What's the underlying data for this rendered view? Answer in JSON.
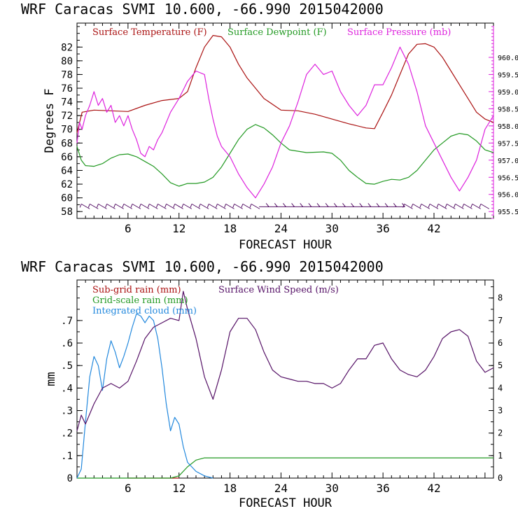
{
  "chart_data": [
    {
      "type": "line",
      "header": "WRF   Caracas SVMI  10.600, -66.990  2015042000",
      "xlabel": "FORECAST HOUR",
      "ylabel": "Degrees F",
      "xlim": [
        0,
        49
      ],
      "xticks": [
        6,
        12,
        18,
        24,
        30,
        36,
        42
      ],
      "ylim": [
        57,
        85.5
      ],
      "yticks": [
        58,
        60,
        62,
        64,
        66,
        68,
        70,
        72,
        74,
        76,
        78,
        80,
        82
      ],
      "y2lim": [
        955.3,
        961.0
      ],
      "y2ticks": [
        "955.5",
        "956.0",
        "956.5",
        "957.0",
        "957.5",
        "958.0",
        "958.5",
        "959.0",
        "959.5",
        "960.0"
      ],
      "series": [
        {
          "name": "Surface Temperature (F)",
          "color": "#aa1111",
          "axis": "left",
          "points": [
            [
              0,
              69.5
            ],
            [
              0.6,
              72.5
            ],
            [
              2,
              72.8
            ],
            [
              4,
              72.7
            ],
            [
              6,
              72.6
            ],
            [
              8,
              73.5
            ],
            [
              10,
              74.2
            ],
            [
              12,
              74.5
            ],
            [
              13,
              75.5
            ],
            [
              14,
              79
            ],
            [
              15,
              82
            ],
            [
              16,
              83.7
            ],
            [
              17,
              83.5
            ],
            [
              18,
              82
            ],
            [
              19,
              79.5
            ],
            [
              20,
              77.5
            ],
            [
              22,
              74.5
            ],
            [
              24,
              72.8
            ],
            [
              26,
              72.7
            ],
            [
              28,
              72.2
            ],
            [
              30,
              71.5
            ],
            [
              32,
              70.8
            ],
            [
              34,
              70.2
            ],
            [
              35,
              70.1
            ],
            [
              36,
              72.5
            ],
            [
              37,
              75
            ],
            [
              38,
              78
            ],
            [
              39,
              81
            ],
            [
              40,
              82.4
            ],
            [
              41,
              82.5
            ],
            [
              42,
              82
            ],
            [
              43,
              80.5
            ],
            [
              44,
              78.5
            ],
            [
              45,
              76.5
            ],
            [
              46,
              74.5
            ],
            [
              47,
              72.5
            ],
            [
              48,
              71.5
            ],
            [
              49,
              71
            ]
          ]
        },
        {
          "name": "Surface Dewpoint (F)",
          "color": "#229922",
          "axis": "left",
          "points": [
            [
              0,
              67.5
            ],
            [
              0.5,
              65.5
            ],
            [
              1,
              64.7
            ],
            [
              2,
              64.6
            ],
            [
              3,
              65
            ],
            [
              4,
              65.8
            ],
            [
              5,
              66.3
            ],
            [
              6,
              66.4
            ],
            [
              7,
              66
            ],
            [
              8,
              65.3
            ],
            [
              9,
              64.6
            ],
            [
              10,
              63.5
            ],
            [
              11,
              62.2
            ],
            [
              12,
              61.7
            ],
            [
              13,
              62.1
            ],
            [
              14,
              62.1
            ],
            [
              15,
              62.3
            ],
            [
              16,
              63
            ],
            [
              17,
              64.5
            ],
            [
              18,
              66.5
            ],
            [
              19,
              68.5
            ],
            [
              20,
              70
            ],
            [
              21,
              70.7
            ],
            [
              22,
              70.2
            ],
            [
              23,
              69.2
            ],
            [
              24,
              68
            ],
            [
              25,
              67
            ],
            [
              27,
              66.6
            ],
            [
              29,
              66.7
            ],
            [
              30,
              66.5
            ],
            [
              31,
              65.5
            ],
            [
              32,
              64
            ],
            [
              33,
              63
            ],
            [
              34,
              62.1
            ],
            [
              35,
              62
            ],
            [
              36,
              62.4
            ],
            [
              37,
              62.7
            ],
            [
              38,
              62.6
            ],
            [
              39,
              63
            ],
            [
              40,
              64
            ],
            [
              41,
              65.5
            ],
            [
              42,
              67
            ],
            [
              43,
              68
            ],
            [
              44,
              69
            ],
            [
              45,
              69.4
            ],
            [
              46,
              69.2
            ],
            [
              47,
              68.3
            ],
            [
              48,
              67
            ],
            [
              49,
              66.6
            ]
          ]
        },
        {
          "name": "Surface Pressure (mb)",
          "color": "#dd22dd",
          "axis": "right",
          "points": [
            [
              0,
              957.5
            ],
            [
              0.3,
              958.1
            ],
            [
              0.6,
              957.9
            ],
            [
              1,
              958.3
            ],
            [
              1.5,
              958.6
            ],
            [
              2,
              959.0
            ],
            [
              2.5,
              958.6
            ],
            [
              3,
              958.8
            ],
            [
              3.5,
              958.4
            ],
            [
              4,
              958.6
            ],
            [
              4.5,
              958.1
            ],
            [
              5,
              958.3
            ],
            [
              5.5,
              958.0
            ],
            [
              6,
              958.3
            ],
            [
              6.5,
              957.9
            ],
            [
              7,
              957.6
            ],
            [
              7.5,
              957.2
            ],
            [
              8,
              957.1
            ],
            [
              8.5,
              957.4
            ],
            [
              9,
              957.3
            ],
            [
              9.5,
              957.6
            ],
            [
              10,
              957.8
            ],
            [
              11,
              958.4
            ],
            [
              12,
              958.8
            ],
            [
              13,
              959.3
            ],
            [
              14,
              959.6
            ],
            [
              15,
              959.5
            ],
            [
              15.5,
              958.8
            ],
            [
              16,
              958.2
            ],
            [
              16.5,
              957.7
            ],
            [
              17,
              957.4
            ],
            [
              18,
              957.1
            ],
            [
              19,
              956.6
            ],
            [
              20,
              956.2
            ],
            [
              21,
              955.9
            ],
            [
              22,
              956.3
            ],
            [
              23,
              956.8
            ],
            [
              24,
              957.5
            ],
            [
              25,
              958.0
            ],
            [
              26,
              958.7
            ],
            [
              27,
              959.5
            ],
            [
              28,
              959.8
            ],
            [
              29,
              959.5
            ],
            [
              30,
              959.6
            ],
            [
              31,
              959.0
            ],
            [
              32,
              958.6
            ],
            [
              33,
              958.3
            ],
            [
              34,
              958.6
            ],
            [
              35,
              959.2
            ],
            [
              36,
              959.2
            ],
            [
              37,
              959.7
            ],
            [
              38,
              960.3
            ],
            [
              39,
              959.8
            ],
            [
              40,
              959.0
            ],
            [
              41,
              958.0
            ],
            [
              42,
              957.5
            ],
            [
              43,
              957.0
            ],
            [
              44,
              956.5
            ],
            [
              45,
              956.1
            ],
            [
              46,
              956.5
            ],
            [
              47,
              957.0
            ],
            [
              48,
              957.9
            ],
            [
              49,
              958.3
            ]
          ]
        }
      ],
      "wind_barbs": "hourly wind barbs along the bottom of the plot"
    },
    {
      "type": "line",
      "header": "WRF   Caracas SVMI  10.600, -66.990  2015042000",
      "xlabel": "FORECAST HOUR",
      "ylabel": "mm",
      "xlim": [
        0,
        49
      ],
      "xticks": [
        6,
        12,
        18,
        24,
        30,
        36,
        42
      ],
      "ylim": [
        0,
        0.88
      ],
      "yticks": [
        "0",
        ".1",
        ".2",
        ".3",
        ".4",
        ".5",
        ".6",
        ".7"
      ],
      "y2lim": [
        0,
        8.8
      ],
      "y2ticks": [
        "0",
        "1",
        "2",
        "3",
        "4",
        "5",
        "6",
        "7",
        "8"
      ],
      "series": [
        {
          "name": "Sub-grid rain (mm)",
          "color": "#aa1111",
          "axis": "left",
          "points": [
            [
              6,
              0.0
            ],
            [
              12,
              0.0
            ]
          ]
        },
        {
          "name": "Grid-scale rain (mm)",
          "color": "#229922",
          "axis": "left",
          "points": [
            [
              0,
              0
            ],
            [
              11,
              0
            ],
            [
              12,
              0.01
            ],
            [
              13,
              0.05
            ],
            [
              14,
              0.08
            ],
            [
              15,
              0.09
            ],
            [
              49,
              0.09
            ]
          ]
        },
        {
          "name": "Integrated cloud (mm)",
          "color": "#2288dd",
          "axis": "left",
          "points": [
            [
              0,
              0
            ],
            [
              0.5,
              0.04
            ],
            [
              1,
              0.25
            ],
            [
              1.5,
              0.45
            ],
            [
              2,
              0.54
            ],
            [
              2.5,
              0.5
            ],
            [
              3,
              0.39
            ],
            [
              3.5,
              0.53
            ],
            [
              4,
              0.61
            ],
            [
              4.5,
              0.56
            ],
            [
              5,
              0.49
            ],
            [
              5.5,
              0.54
            ],
            [
              6,
              0.6
            ],
            [
              6.5,
              0.67
            ],
            [
              7,
              0.73
            ],
            [
              7.5,
              0.72
            ],
            [
              8,
              0.69
            ],
            [
              8.5,
              0.72
            ],
            [
              9,
              0.7
            ],
            [
              9.5,
              0.62
            ],
            [
              10,
              0.49
            ],
            [
              10.5,
              0.33
            ],
            [
              11,
              0.21
            ],
            [
              11.5,
              0.27
            ],
            [
              12,
              0.24
            ],
            [
              12.5,
              0.14
            ],
            [
              13,
              0.07
            ],
            [
              14,
              0.03
            ],
            [
              15,
              0.01
            ],
            [
              16,
              0.0
            ]
          ]
        },
        {
          "name": "Surface Wind Speed (m/s)",
          "color": "#551166",
          "axis": "right",
          "points": [
            [
              0,
              2.1
            ],
            [
              0.5,
              2.8
            ],
            [
              1,
              2.4
            ],
            [
              2,
              3.3
            ],
            [
              3,
              4.0
            ],
            [
              4,
              4.2
            ],
            [
              5,
              4.0
            ],
            [
              6,
              4.3
            ],
            [
              7,
              5.2
            ],
            [
              8,
              6.2
            ],
            [
              9,
              6.7
            ],
            [
              10,
              6.9
            ],
            [
              11,
              7.1
            ],
            [
              12,
              7.0
            ],
            [
              12.5,
              8.3
            ],
            [
              13,
              7.5
            ],
            [
              14,
              6.2
            ],
            [
              15,
              4.5
            ],
            [
              16,
              3.5
            ],
            [
              17,
              4.8
            ],
            [
              18,
              6.5
            ],
            [
              19,
              7.1
            ],
            [
              20,
              7.1
            ],
            [
              21,
              6.6
            ],
            [
              22,
              5.6
            ],
            [
              23,
              4.8
            ],
            [
              24,
              4.5
            ],
            [
              25,
              4.4
            ],
            [
              26,
              4.3
            ],
            [
              27,
              4.3
            ],
            [
              28,
              4.2
            ],
            [
              29,
              4.2
            ],
            [
              30,
              4.0
            ],
            [
              31,
              4.2
            ],
            [
              32,
              4.8
            ],
            [
              33,
              5.3
            ],
            [
              34,
              5.3
            ],
            [
              35,
              5.9
            ],
            [
              36,
              6.0
            ],
            [
              37,
              5.3
            ],
            [
              38,
              4.8
            ],
            [
              39,
              4.6
            ],
            [
              40,
              4.5
            ],
            [
              41,
              4.8
            ],
            [
              42,
              5.4
            ],
            [
              43,
              6.2
            ],
            [
              44,
              6.5
            ],
            [
              45,
              6.6
            ],
            [
              46,
              6.3
            ],
            [
              47,
              5.2
            ],
            [
              48,
              4.7
            ],
            [
              49,
              4.9
            ]
          ]
        }
      ]
    }
  ]
}
